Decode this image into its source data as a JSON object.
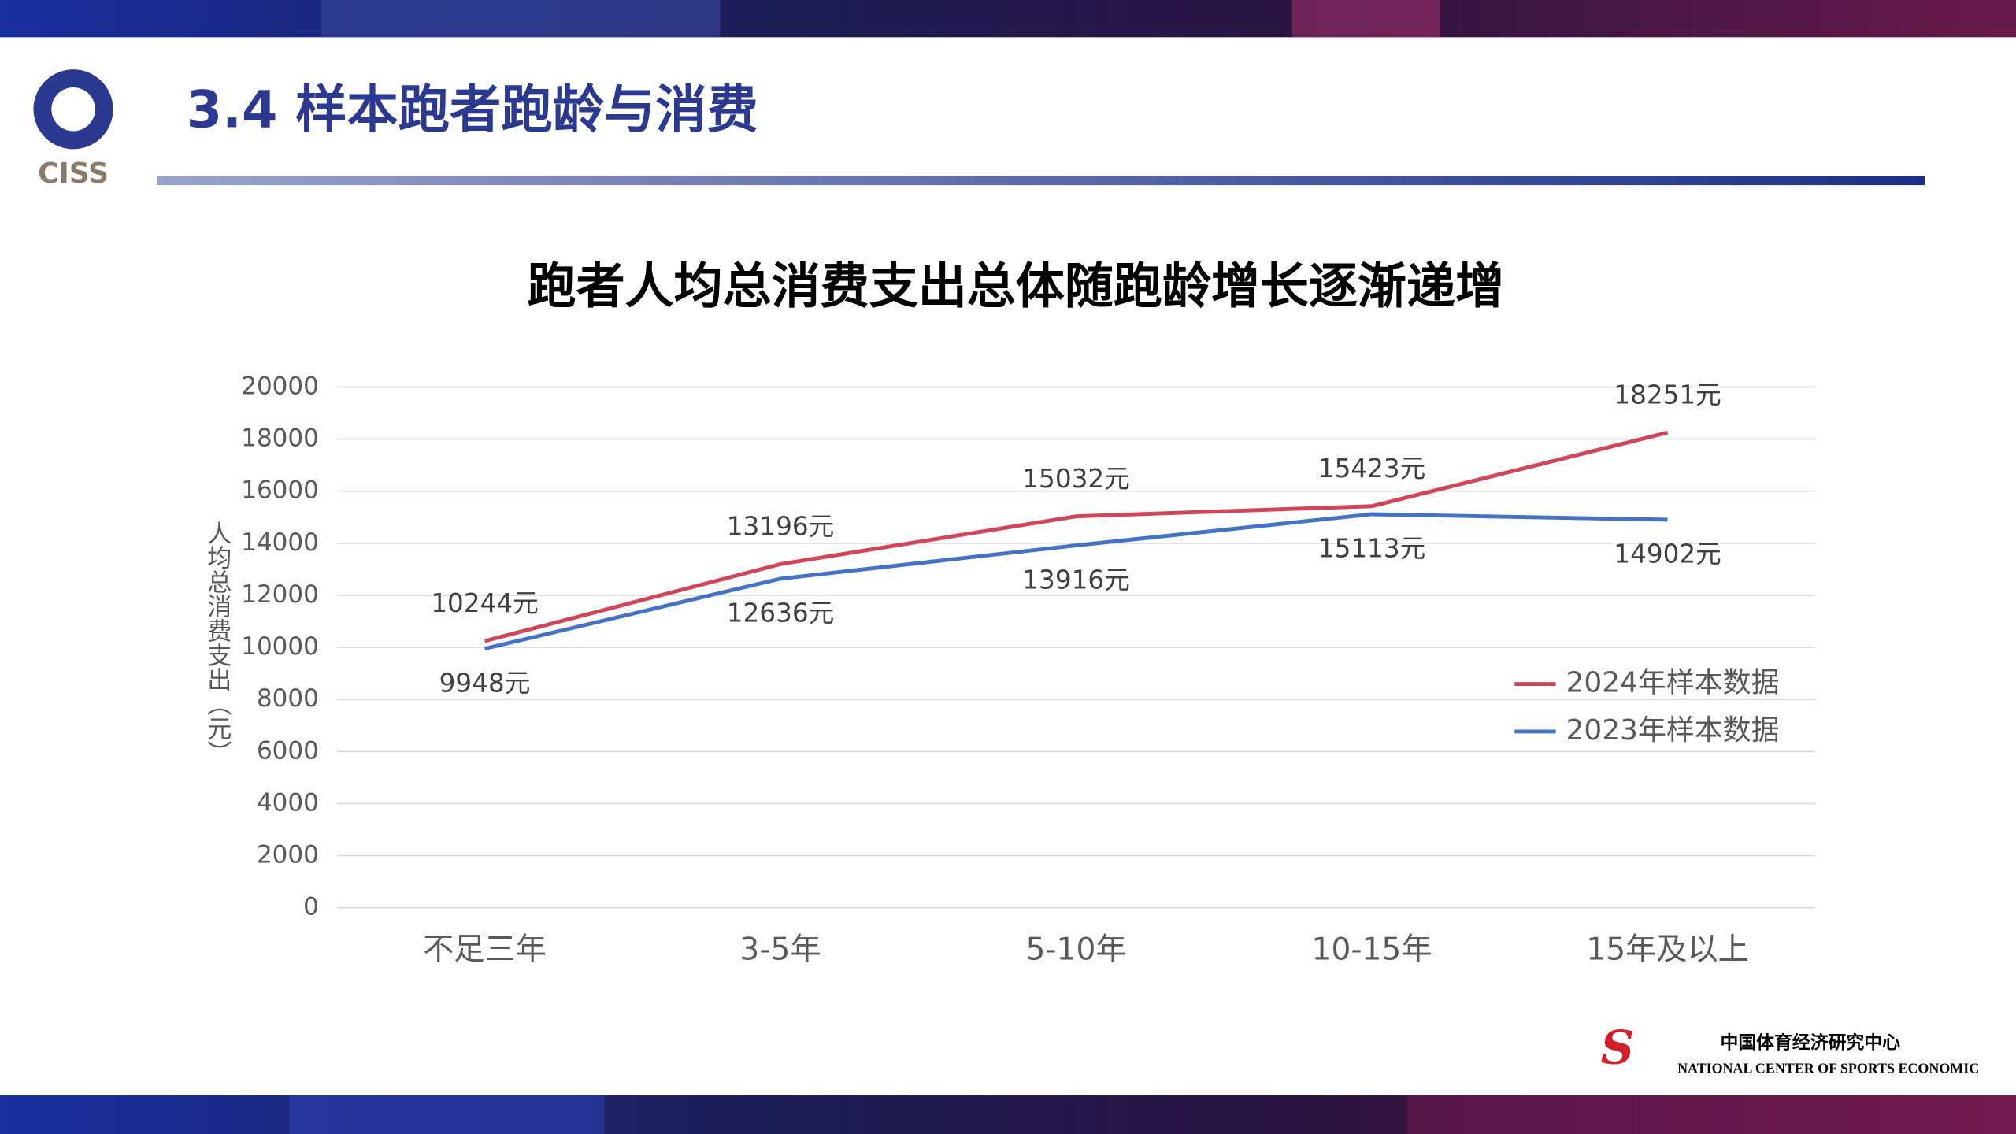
{
  "header": {
    "title": "3.4 样本跑者跑龄与消费",
    "logo": "CISS"
  },
  "chart_data": {
    "type": "line",
    "title": "跑者人均总消费支出总体随跑龄增长逐渐递增",
    "y_label": "人均总消费支出（元）",
    "categories": [
      "不足三年",
      "3-5年",
      "5-10年",
      "10-15年",
      "15年及以上"
    ],
    "series": [
      {
        "name": "2024年样本数据",
        "color": "#d0455a",
        "values": [
          10244,
          13196,
          15032,
          15423,
          18251
        ],
        "value_labels": [
          "10244元",
          "13196元",
          "15032元",
          "15423元",
          "18251元"
        ]
      },
      {
        "name": "2023年样本数据",
        "color": "#4472c4",
        "values": [
          9948,
          12636,
          13916,
          15113,
          14902
        ],
        "value_labels": [
          "9948元",
          "12636元",
          "13916元",
          "15113元",
          "14902元"
        ]
      }
    ],
    "ylim": [
      0,
      20000
    ],
    "yticks": [
      0,
      2000,
      4000,
      6000,
      8000,
      10000,
      12000,
      14000,
      16000,
      18000,
      20000
    ],
    "grid": true,
    "legend": "right"
  },
  "footer": {
    "org_cn": "中国体育经济研究中心",
    "org_en": "NATIONAL CENTER OF SPORTS ECONOMIC"
  }
}
